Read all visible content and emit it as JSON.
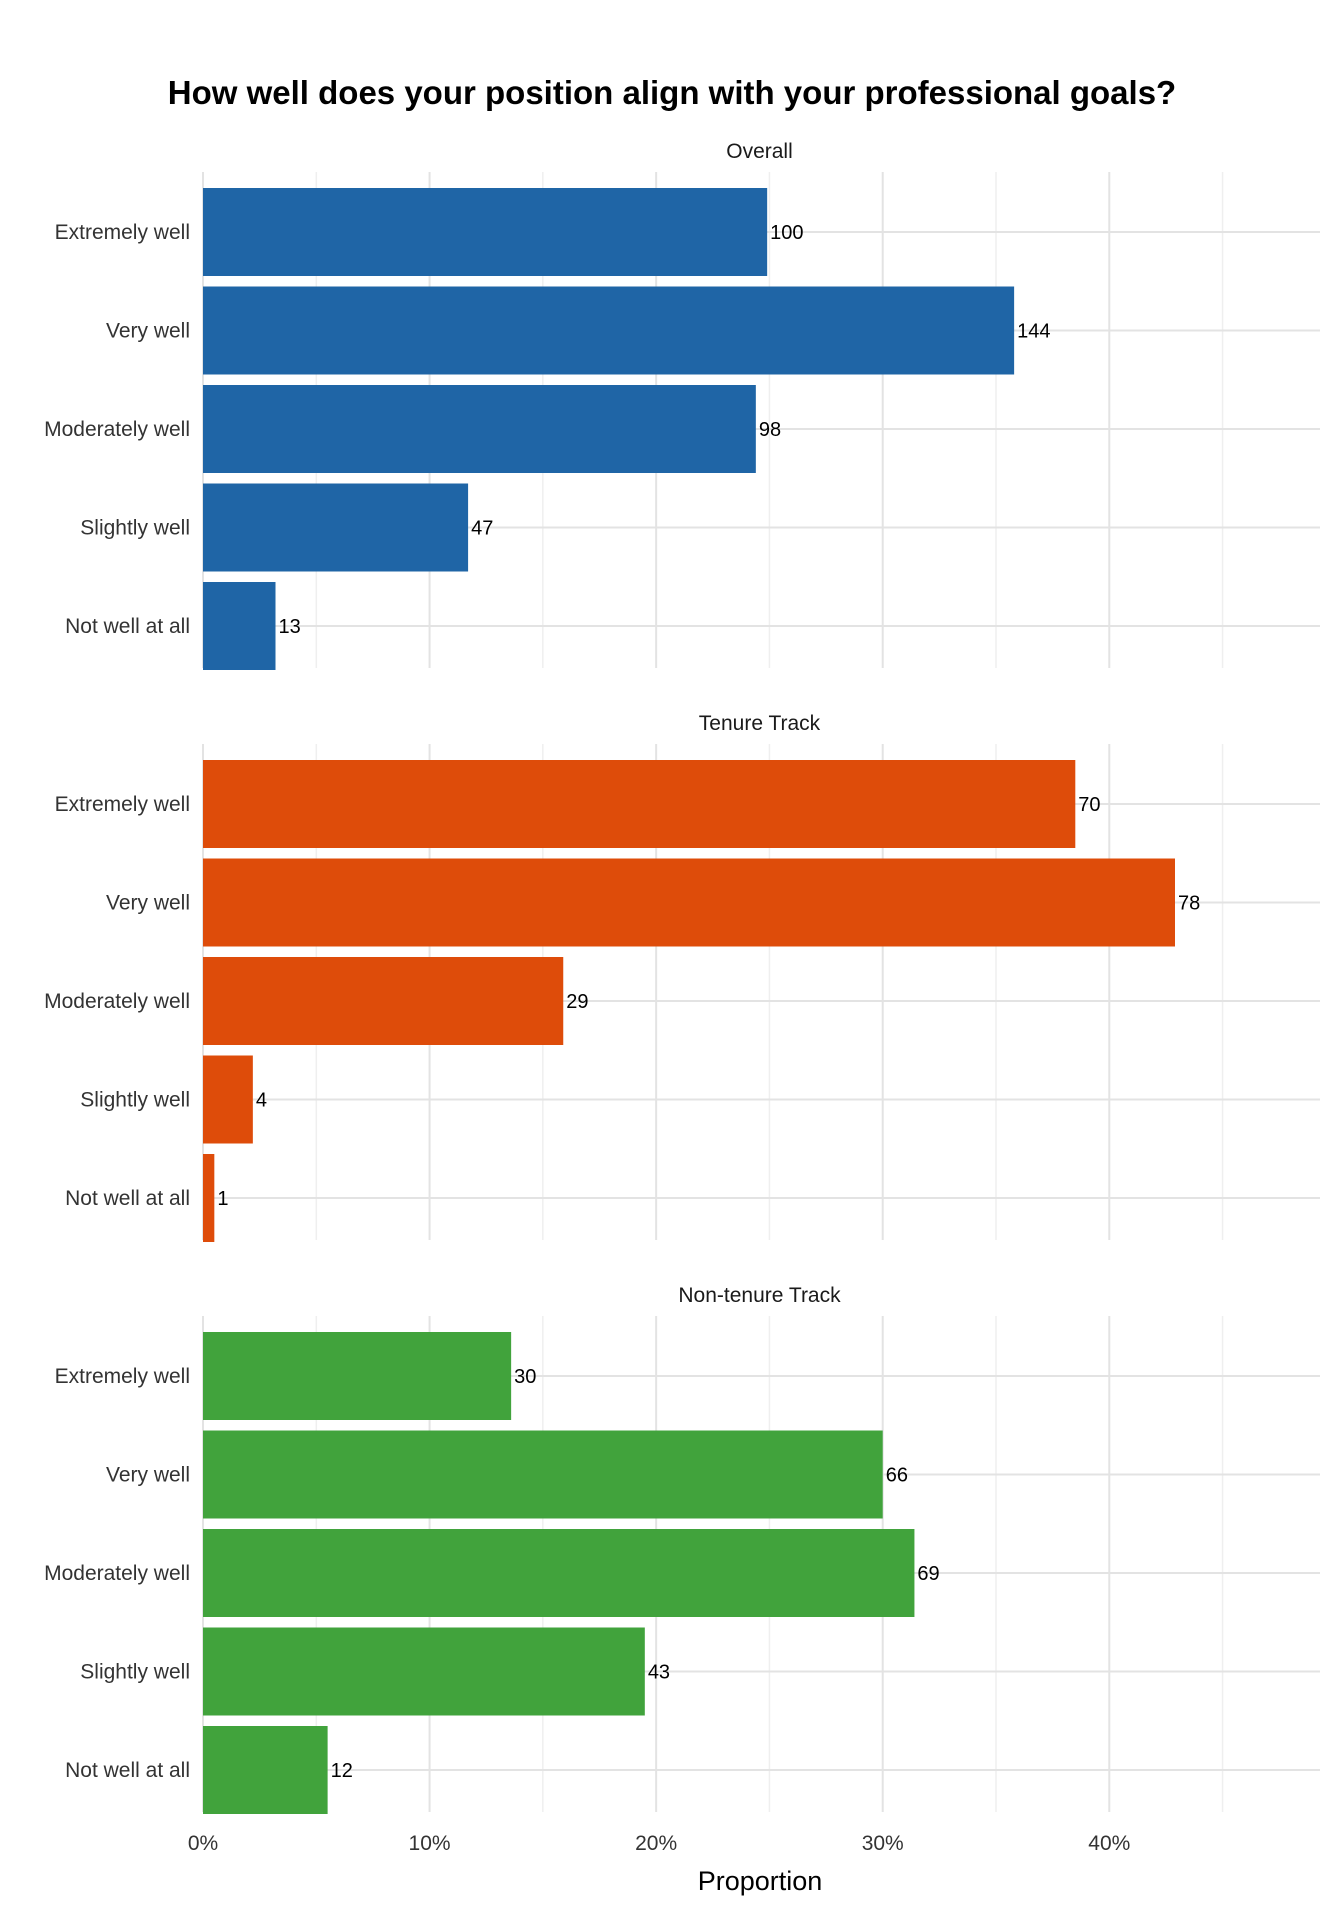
{
  "chart_data": {
    "type": "bar",
    "orientation": "horizontal",
    "title": "How well does your position align with your professional goals?",
    "xlabel": "Proportion",
    "ylabel": "",
    "xlim": [
      0,
      0.493
    ],
    "x_ticks": [
      0,
      0.1,
      0.2,
      0.3,
      0.4
    ],
    "x_tick_labels": [
      "0%",
      "10%",
      "20%",
      "30%",
      "40%"
    ],
    "grid": true,
    "legend": "none",
    "categories": [
      "Extremely well",
      "Very well",
      "Moderately well",
      "Slightly well",
      "Not well at all"
    ],
    "panels": [
      {
        "name": "Overall",
        "color": "#1f65a6",
        "counts": [
          100,
          144,
          98,
          47,
          13
        ],
        "values": [
          0.249,
          0.358,
          0.244,
          0.117,
          0.032
        ]
      },
      {
        "name": "Tenure Track",
        "color": "#de4c0a",
        "counts": [
          70,
          78,
          29,
          4,
          1
        ],
        "values": [
          0.385,
          0.429,
          0.159,
          0.022,
          0.005
        ]
      },
      {
        "name": "Non-tenure Track",
        "color": "#41a33c",
        "counts": [
          30,
          66,
          69,
          43,
          12
        ],
        "values": [
          0.136,
          0.3,
          0.314,
          0.195,
          0.055
        ]
      }
    ]
  }
}
